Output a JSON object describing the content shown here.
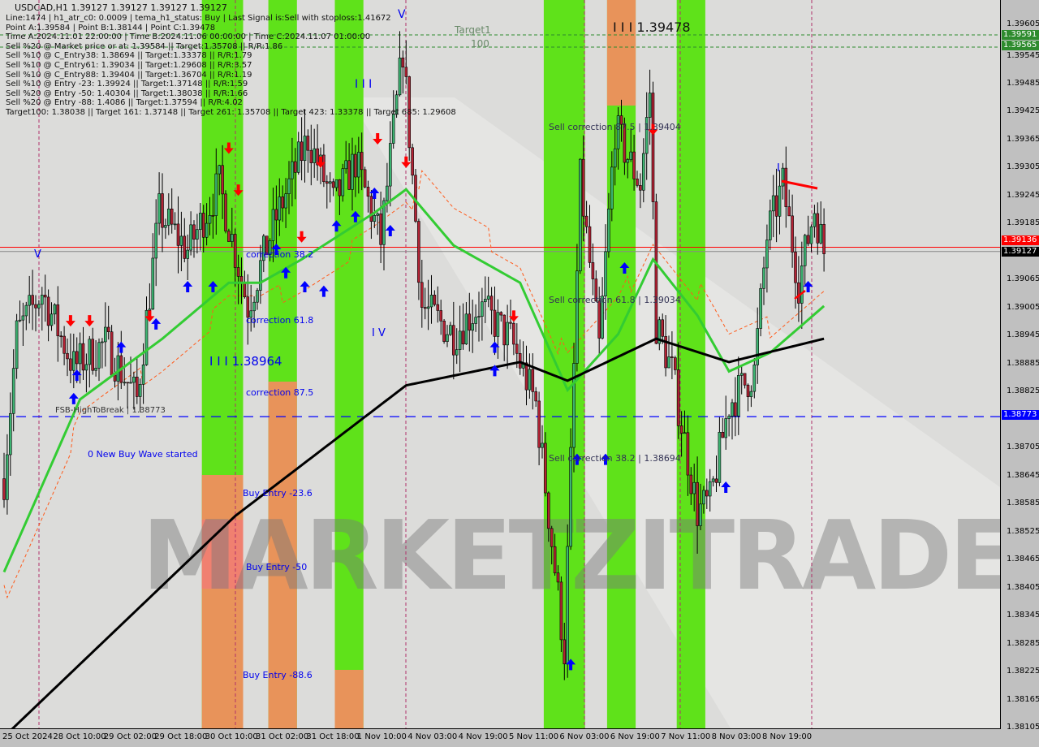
{
  "header": {
    "symbol_line": "USDCAD,H1  1.39127 1.39127 1.39127 1.39127",
    "info_lines": [
      "Line:1474 | h1_atr_c0: 0.0009 | tema_h1_status: Buy | Last Signal is:Sell with stoploss:1.41672",
      "Point A:1.39584 | Point B:1.38144 | Point C:1.39478",
      "Time A:2024.11.01 22:00:00 | Time B:2024.11.06 00:00:00 | Time C:2024.11.07 01:00:00",
      "Sell %20 @ Market price or at: 1.39584 || Target:1.35708 || R/R:1.86",
      "Sell %10 @ C_Entry38: 1.38694 || Target:1.33378 || R/R:1.79",
      "Sell %10 @ C_Entry61: 1.39034 || Target:1.29608 || R/R:3.57",
      "Sell %10 @ C_Entry88: 1.39404 || Target:1.36704 || R/R:1.19",
      "Sell %10 @ Entry -23: 1.39924 || Target:1.37148 || R/R:1.59",
      "Sell %20 @ Entry -50: 1.40304 || Target:1.38038 || R/R:1.66",
      "Sell %20 @ Entry -88: 1.4086 || Target:1.37594 || R/R:4.02",
      "Target100: 1.38038 || Target 161: 1.37148 || Target 261: 1.35708 || Target 423: 1.33378 || Target 685: 1.29608"
    ]
  },
  "annotations": {
    "target1": "Target1",
    "target1_value": "100",
    "point_c": "I I I 1.39478",
    "wave_level": "I I I 1.38964",
    "wave_v_top": "V",
    "wave_v_left": "V",
    "wave_iii": "I I I",
    "wave_iv": "I V",
    "wave_i_right": "I",
    "correction_38": "correction 38.2",
    "correction_61": "correction 61.8",
    "correction_87": "correction 87.5",
    "fsb": "FSB-HighToBreak | 1.38773",
    "new_wave": "0 New Buy Wave started",
    "buy_entry_23": "Buy Entry -23.6",
    "buy_entry_50": "Buy Entry -50",
    "buy_entry_88": "Buy Entry -88.6",
    "sell_corr_87": "Sell correction 87.5 | 1.39404",
    "sell_corr_61": "Sell correction 61.8 | 1.39034",
    "sell_corr_38": "Sell correction 38.2 | 1.38694",
    "watermark": "MARKETZITRADE"
  },
  "chart_data": {
    "type": "candlestick",
    "title": "USDCAD,H1",
    "ylim": [
      1.38105,
      1.39635
    ],
    "y_ticks": [
      "1.39605",
      "1.39545",
      "1.39485",
      "1.39425",
      "1.39365",
      "1.39305",
      "1.39245",
      "1.39185",
      "1.39065",
      "1.39005",
      "1.38945",
      "1.38885",
      "1.38825",
      "1.38705",
      "1.38645",
      "1.38585",
      "1.38525",
      "1.38465",
      "1.38405",
      "1.38345",
      "1.38285",
      "1.38225",
      "1.38165",
      "1.38105"
    ],
    "x_ticks": [
      "25 Oct 2024",
      "28 Oct 10:00",
      "29 Oct 02:00",
      "29 Oct 18:00",
      "30 Oct 10:00",
      "31 Oct 02:00",
      "31 Oct 18:00",
      "1 Nov 10:00",
      "4 Nov 03:00",
      "4 Nov 19:00",
      "5 Nov 11:00",
      "6 Nov 03:00",
      "6 Nov 19:00",
      "7 Nov 11:00",
      "8 Nov 03:00",
      "8 Nov 19:00"
    ],
    "bars_per_tick": 16,
    "close_path": [
      [
        0,
        1.3864
      ],
      [
        4,
        1.3895
      ],
      [
        12,
        1.3904
      ],
      [
        22,
        1.3888
      ],
      [
        32,
        1.3893
      ],
      [
        42,
        1.3881
      ],
      [
        49,
        1.3921
      ],
      [
        58,
        1.3913
      ],
      [
        68,
        1.3927
      ],
      [
        77,
        1.3901
      ],
      [
        86,
        1.392
      ],
      [
        96,
        1.3937
      ],
      [
        104,
        1.3923
      ],
      [
        111,
        1.3932
      ],
      [
        119,
        1.3915
      ],
      [
        126,
        1.3956
      ],
      [
        132,
        1.3901
      ],
      [
        142,
        1.3895
      ],
      [
        150,
        1.3901
      ],
      [
        160,
        1.3894
      ],
      [
        168,
        1.388
      ],
      [
        177,
        1.3827
      ],
      [
        182,
        1.3928
      ],
      [
        188,
        1.3892
      ],
      [
        193,
        1.3939
      ],
      [
        201,
        1.3927
      ],
      [
        204,
        1.3947
      ],
      [
        206,
        1.3897
      ],
      [
        211,
        1.3887
      ],
      [
        219,
        1.3857
      ],
      [
        223,
        1.3859
      ],
      [
        229,
        1.388
      ],
      [
        237,
        1.3887
      ],
      [
        241,
        1.3916
      ],
      [
        246,
        1.3927
      ],
      [
        251,
        1.3906
      ],
      [
        256,
        1.3922
      ],
      [
        259,
        1.39127
      ]
    ],
    "ma_fast": [
      [
        0,
        1.3844
      ],
      [
        24,
        1.3881
      ],
      [
        50,
        1.3894
      ],
      [
        71,
        1.3906
      ],
      [
        81,
        1.3906
      ],
      [
        94,
        1.3911
      ],
      [
        117,
        1.3921
      ],
      [
        127,
        1.3926
      ],
      [
        142,
        1.3914
      ],
      [
        163,
        1.3906
      ],
      [
        178,
        1.3883
      ],
      [
        194,
        1.3895
      ],
      [
        205,
        1.3911
      ],
      [
        219,
        1.3899
      ],
      [
        229,
        1.3887
      ],
      [
        242,
        1.3891
      ],
      [
        259,
        1.3901
      ]
    ],
    "ma_slow": [
      [
        2,
        1.381
      ],
      [
        73,
        1.3856
      ],
      [
        127,
        1.3884
      ],
      [
        163,
        1.3889
      ],
      [
        178,
        1.3885
      ],
      [
        206,
        1.3894
      ],
      [
        229,
        1.3889
      ],
      [
        259,
        1.3894
      ]
    ],
    "levels": {
      "current_bid": "1.39127",
      "current_ask": "1.39136",
      "fsb_high": "1.38773",
      "target_line_1": "1.39591",
      "target_line_2": "1.39565"
    },
    "zones": [
      {
        "from_bar": 63,
        "to_bar": 75,
        "color": "green",
        "lower": "orange"
      },
      {
        "from_bar": 84,
        "to_bar": 92,
        "color": "green",
        "lower": "orange"
      },
      {
        "from_bar": 105,
        "to_bar": 113,
        "color": "green",
        "lower": "orange"
      },
      {
        "from_bar": 171,
        "to_bar": 183,
        "color": "green"
      },
      {
        "from_bar": 191,
        "to_bar": 199,
        "color": "green",
        "upper": "orange"
      },
      {
        "from_bar": 213,
        "to_bar": 221,
        "color": "green"
      }
    ],
    "buy_arrows": [
      [
        22,
        1.3881
      ],
      [
        23,
        1.3886
      ],
      [
        37,
        1.3892
      ],
      [
        48,
        1.3897
      ],
      [
        58,
        1.3905
      ],
      [
        66,
        1.3905
      ],
      [
        86,
        1.3913
      ],
      [
        89,
        1.3908
      ],
      [
        95,
        1.3905
      ],
      [
        101,
        1.3904
      ],
      [
        105,
        1.3918
      ],
      [
        111,
        1.392
      ],
      [
        117,
        1.3925
      ],
      [
        122,
        1.3917
      ],
      [
        155,
        1.3892
      ],
      [
        155,
        1.3887
      ],
      [
        179,
        1.3824
      ],
      [
        181,
        1.3868
      ],
      [
        190,
        1.3868
      ],
      [
        196,
        1.3909
      ],
      [
        228,
        1.3862
      ],
      [
        254,
        1.3905
      ]
    ],
    "sell_arrows": [
      [
        21,
        1.3898
      ],
      [
        27,
        1.3898
      ],
      [
        46,
        1.3899
      ],
      [
        71,
        1.3935
      ],
      [
        74,
        1.3926
      ],
      [
        94,
        1.3916
      ],
      [
        100,
        1.3932
      ],
      [
        118,
        1.3937
      ],
      [
        127,
        1.3932
      ],
      [
        161,
        1.3899
      ],
      [
        205,
        1.3939
      ]
    ],
    "colors": {
      "bull": "#3cb371",
      "bear": "#b22234",
      "ma_fast": "#33cc33",
      "ma_slow": "#000000",
      "zone_green": "#5fe21a",
      "zone_orange": "#e8935a",
      "bid_line": "#ff0000",
      "fsb_line": "#0000ff"
    }
  }
}
